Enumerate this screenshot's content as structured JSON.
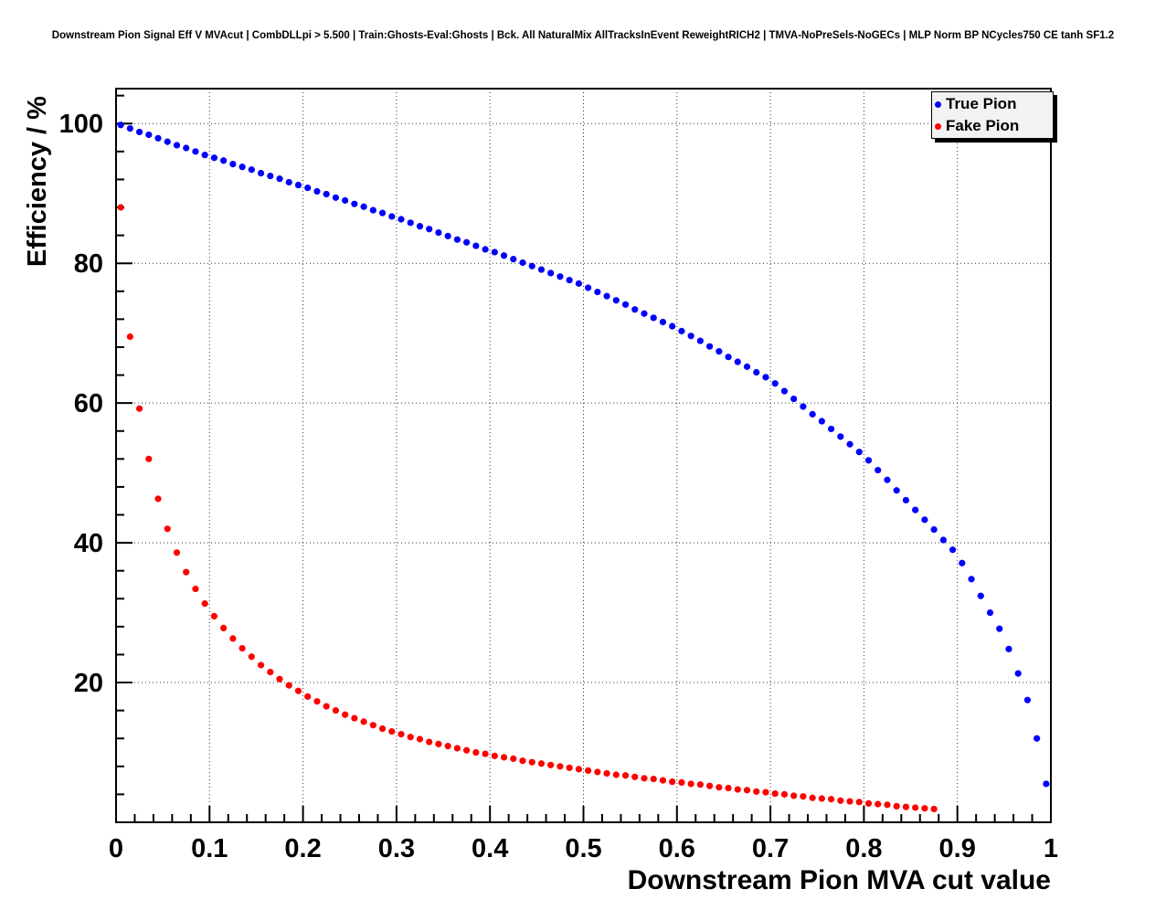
{
  "title": "Downstream Pion Signal Eff V MVAcut | CombDLLpi > 5.500 | Train:Ghosts-Eval:Ghosts | Bck. All NaturalMix AllTracksInEvent ReweightRICH2 | TMVA-NoPreSels-NoGECs | MLP Norm BP NCycles750 CE tanh SF1.2",
  "chart_data": {
    "type": "scatter",
    "title": "Downstream Pion Signal Eff V MVAcut",
    "xlabel": "Downstream Pion MVA cut value",
    "ylabel": "Efficiency / %",
    "xlim": [
      0,
      1
    ],
    "ylim": [
      0,
      105
    ],
    "grid": true,
    "grid_style": "dotted",
    "x_major_ticks": [
      0,
      0.1,
      0.2,
      0.3,
      0.4,
      0.5,
      0.6,
      0.7,
      0.8,
      0.9,
      1
    ],
    "x_tick_labels": [
      "0",
      "0.1",
      "0.2",
      "0.3",
      "0.4",
      "0.5",
      "0.6",
      "0.7",
      "0.8",
      "0.9",
      "1"
    ],
    "x_minor_step": 0.02,
    "y_major_ticks": [
      20,
      40,
      60,
      80,
      100
    ],
    "y_tick_labels": [
      "20",
      "40",
      "60",
      "80",
      "100"
    ],
    "y_minor_step": 4,
    "legend": {
      "position": "top-right",
      "entries": [
        {
          "label": "True Pion",
          "color": "#0000ff"
        },
        {
          "label": "Fake Pion",
          "color": "#ff0000"
        }
      ]
    },
    "series": [
      {
        "name": "True Pion",
        "color": "#0000ff",
        "marker": "circle",
        "x": [
          0.005,
          0.015,
          0.025,
          0.035,
          0.045,
          0.055,
          0.065,
          0.075,
          0.085,
          0.095,
          0.105,
          0.115,
          0.125,
          0.135,
          0.145,
          0.155,
          0.165,
          0.175,
          0.185,
          0.195,
          0.205,
          0.215,
          0.225,
          0.235,
          0.245,
          0.255,
          0.265,
          0.275,
          0.285,
          0.295,
          0.305,
          0.315,
          0.325,
          0.335,
          0.345,
          0.355,
          0.365,
          0.375,
          0.385,
          0.395,
          0.405,
          0.415,
          0.425,
          0.435,
          0.445,
          0.455,
          0.465,
          0.475,
          0.485,
          0.495,
          0.505,
          0.515,
          0.525,
          0.535,
          0.545,
          0.555,
          0.565,
          0.575,
          0.585,
          0.595,
          0.605,
          0.615,
          0.625,
          0.635,
          0.645,
          0.655,
          0.665,
          0.675,
          0.685,
          0.695,
          0.705,
          0.715,
          0.725,
          0.735,
          0.745,
          0.755,
          0.765,
          0.775,
          0.785,
          0.795,
          0.805,
          0.815,
          0.825,
          0.835,
          0.845,
          0.855,
          0.865,
          0.875,
          0.885,
          0.895,
          0.905,
          0.915,
          0.925,
          0.935,
          0.945,
          0.955,
          0.965,
          0.975,
          0.985,
          0.995
        ],
        "y": [
          99.8,
          99.3,
          98.8,
          98.4,
          97.9,
          97.4,
          96.9,
          96.5,
          96.0,
          95.5,
          95.1,
          94.7,
          94.2,
          93.8,
          93.4,
          92.9,
          92.5,
          92.1,
          91.6,
          91.2,
          90.8,
          90.3,
          89.9,
          89.4,
          89.0,
          88.5,
          88.1,
          87.6,
          87.2,
          86.7,
          86.3,
          85.8,
          85.3,
          84.9,
          84.4,
          83.9,
          83.4,
          83.0,
          82.5,
          82.0,
          81.6,
          81.1,
          80.6,
          80.1,
          79.6,
          79.1,
          78.6,
          78.1,
          77.6,
          77.1,
          76.5,
          75.9,
          75.3,
          74.7,
          74.1,
          73.4,
          72.8,
          72.2,
          71.6,
          71.0,
          70.3,
          69.6,
          68.9,
          68.1,
          67.4,
          66.6,
          65.9,
          65.2,
          64.4,
          63.7,
          62.8,
          61.7,
          60.6,
          59.5,
          58.4,
          57.4,
          56.3,
          55.2,
          54.1,
          53.0,
          51.8,
          50.4,
          49.0,
          47.5,
          46.1,
          44.7,
          43.3,
          41.9,
          40.4,
          39.0,
          37.1,
          34.8,
          32.4,
          30.0,
          27.7,
          24.8,
          21.3,
          17.5,
          12.0,
          5.5
        ]
      },
      {
        "name": "Fake Pion",
        "color": "#ff0000",
        "marker": "circle",
        "x": [
          0.005,
          0.015,
          0.025,
          0.035,
          0.045,
          0.055,
          0.065,
          0.075,
          0.085,
          0.095,
          0.105,
          0.115,
          0.125,
          0.135,
          0.145,
          0.155,
          0.165,
          0.175,
          0.185,
          0.195,
          0.205,
          0.215,
          0.225,
          0.235,
          0.245,
          0.255,
          0.265,
          0.275,
          0.285,
          0.295,
          0.305,
          0.315,
          0.325,
          0.335,
          0.345,
          0.355,
          0.365,
          0.375,
          0.385,
          0.395,
          0.405,
          0.415,
          0.425,
          0.435,
          0.445,
          0.455,
          0.465,
          0.475,
          0.485,
          0.495,
          0.505,
          0.515,
          0.525,
          0.535,
          0.545,
          0.555,
          0.565,
          0.575,
          0.585,
          0.595,
          0.605,
          0.615,
          0.625,
          0.635,
          0.645,
          0.655,
          0.665,
          0.675,
          0.685,
          0.695,
          0.705,
          0.715,
          0.725,
          0.735,
          0.745,
          0.755,
          0.765,
          0.775,
          0.785,
          0.795,
          0.805,
          0.815,
          0.825,
          0.835,
          0.845,
          0.855,
          0.865,
          0.875
        ],
        "y": [
          88.0,
          69.5,
          59.2,
          52.0,
          46.3,
          42.0,
          38.6,
          35.8,
          33.4,
          31.3,
          29.5,
          27.8,
          26.3,
          24.9,
          23.7,
          22.5,
          21.5,
          20.5,
          19.6,
          18.8,
          18.0,
          17.3,
          16.6,
          16.0,
          15.4,
          14.9,
          14.4,
          13.9,
          13.4,
          13.0,
          12.6,
          12.2,
          11.9,
          11.5,
          11.2,
          10.9,
          10.6,
          10.3,
          10.0,
          9.8,
          9.5,
          9.3,
          9.1,
          8.8,
          8.6,
          8.4,
          8.2,
          8.0,
          7.8,
          7.6,
          7.4,
          7.2,
          7.0,
          6.8,
          6.7,
          6.5,
          6.3,
          6.2,
          6.0,
          5.8,
          5.7,
          5.5,
          5.4,
          5.2,
          5.0,
          4.9,
          4.7,
          4.6,
          4.4,
          4.3,
          4.1,
          4.0,
          3.8,
          3.7,
          3.5,
          3.4,
          3.3,
          3.1,
          3.0,
          2.9,
          2.7,
          2.6,
          2.5,
          2.3,
          2.2,
          2.1,
          2.0,
          1.9
        ]
      }
    ]
  }
}
